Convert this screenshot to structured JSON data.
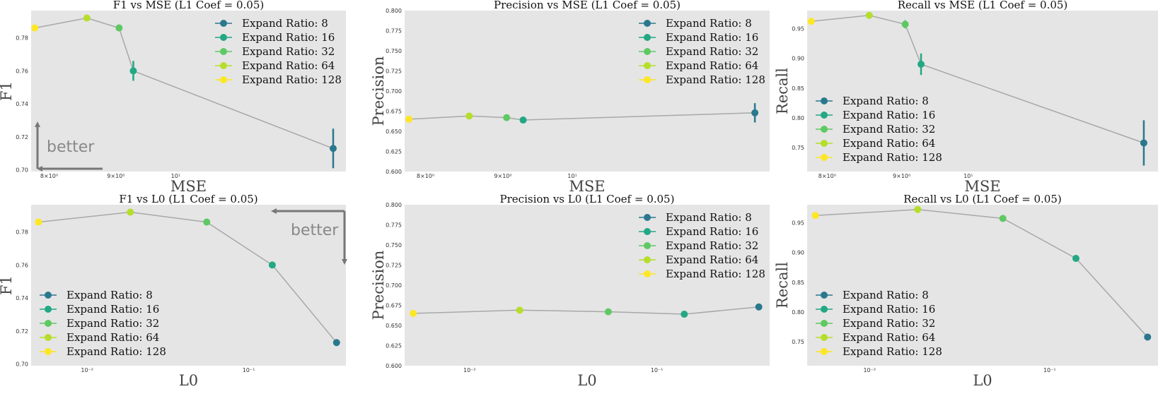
{
  "colors": {
    "axes_bg": "#e5e5e5",
    "connector": "#a8a8a8",
    "arrow": "#777777",
    "ratio_8": "#2a788e",
    "ratio_16": "#22a884",
    "ratio_32": "#5ec962",
    "ratio_64": "#b5de2b",
    "ratio_128": "#fde725"
  },
  "legend": {
    "labels": [
      "Expand Ratio: 8",
      "Expand Ratio: 16",
      "Expand Ratio: 32",
      "Expand Ratio: 64",
      "Expand Ratio: 128"
    ]
  },
  "annotations": {
    "better": "better"
  },
  "chart_data": [
    {
      "type": "scatter",
      "title": "F1 vs MSE (L1 Coef = 0.05)",
      "xlabel": "MSE",
      "ylabel": "F1",
      "xscale": "log",
      "xlim": [
        7.75,
        13.5
      ],
      "ylim": [
        0.699,
        0.7965
      ],
      "xticks": [
        8,
        9,
        10
      ],
      "xtick_labels": [
        "8×10⁰",
        "9×10⁰",
        "10¹"
      ],
      "yticks": [
        0.7,
        0.72,
        0.74,
        0.76,
        0.78
      ],
      "ytick_labels": [
        "0.70",
        "0.72",
        "0.74",
        "0.76",
        "0.78"
      ],
      "legend_position": "upper right",
      "better_arrow": "bottom-left",
      "points": [
        {
          "series": "Expand Ratio: 128",
          "x": 7.8,
          "y": 0.786,
          "err": 0
        },
        {
          "series": "Expand Ratio: 64",
          "x": 8.55,
          "y": 0.792,
          "err": 0
        },
        {
          "series": "Expand Ratio: 32",
          "x": 9.05,
          "y": 0.786,
          "err": 0
        },
        {
          "series": "Expand Ratio: 16",
          "x": 9.28,
          "y": 0.76,
          "err": 0.006
        },
        {
          "series": "Expand Ratio: 8",
          "x": 13.2,
          "y": 0.713,
          "err": 0.012
        }
      ]
    },
    {
      "type": "scatter",
      "title": "Precision vs MSE (L1 Coef = 0.05)",
      "xlabel": "MSE",
      "ylabel": "Precision",
      "xscale": "log",
      "xlim": [
        7.75,
        13.5
      ],
      "ylim": [
        0.6,
        0.8
      ],
      "xticks": [
        8,
        9,
        10
      ],
      "xtick_labels": [
        "8×10⁰",
        "9×10⁰",
        "10¹"
      ],
      "yticks": [
        0.6,
        0.625,
        0.65,
        0.675,
        0.7,
        0.725,
        0.75,
        0.775,
        0.8
      ],
      "ytick_labels": [
        "0.600",
        "0.625",
        "0.650",
        "0.675",
        "0.700",
        "0.725",
        "0.750",
        "0.775",
        "0.800"
      ],
      "legend_position": "upper right",
      "points": [
        {
          "series": "Expand Ratio: 128",
          "x": 7.8,
          "y": 0.665,
          "err": 0
        },
        {
          "series": "Expand Ratio: 64",
          "x": 8.55,
          "y": 0.669,
          "err": 0
        },
        {
          "series": "Expand Ratio: 32",
          "x": 9.05,
          "y": 0.667,
          "err": 0
        },
        {
          "series": "Expand Ratio: 16",
          "x": 9.28,
          "y": 0.664,
          "err": 0
        },
        {
          "series": "Expand Ratio: 8",
          "x": 13.2,
          "y": 0.673,
          "err": 0.012
        }
      ]
    },
    {
      "type": "scatter",
      "title": "Recall vs MSE (L1 Coef = 0.05)",
      "xlabel": "MSE",
      "ylabel": "Recall",
      "xscale": "log",
      "xlim": [
        7.75,
        13.5
      ],
      "ylim": [
        0.71,
        0.98
      ],
      "xticks": [
        8,
        9,
        10
      ],
      "xtick_labels": [
        "8×10⁰",
        "9×10⁰",
        "10¹"
      ],
      "yticks": [
        0.75,
        0.8,
        0.85,
        0.9,
        0.95
      ],
      "ytick_labels": [
        "0.75",
        "0.80",
        "0.85",
        "0.90",
        "0.95"
      ],
      "legend_position": "lower left",
      "points": [
        {
          "series": "Expand Ratio: 128",
          "x": 7.8,
          "y": 0.962,
          "err": 0
        },
        {
          "series": "Expand Ratio: 64",
          "x": 8.55,
          "y": 0.972,
          "err": 0
        },
        {
          "series": "Expand Ratio: 32",
          "x": 9.05,
          "y": 0.957,
          "err": 0.007
        },
        {
          "series": "Expand Ratio: 16",
          "x": 9.28,
          "y": 0.89,
          "err": 0.018
        },
        {
          "series": "Expand Ratio: 8",
          "x": 13.2,
          "y": 0.758,
          "err": 0.038
        }
      ]
    },
    {
      "type": "scatter",
      "title": "F1 vs L0 (L1 Coef = 0.05)",
      "xlabel": "L0",
      "ylabel": "F1",
      "xscale": "log",
      "xlim": [
        0.0045,
        0.4
      ],
      "ylim": [
        0.699,
        0.7965
      ],
      "xticks": [
        0.01,
        0.1
      ],
      "xtick_labels": [
        "10⁻²",
        "10⁻¹"
      ],
      "yticks": [
        0.7,
        0.72,
        0.74,
        0.76,
        0.78
      ],
      "ytick_labels": [
        "0.70",
        "0.72",
        "0.74",
        "0.76",
        "0.78"
      ],
      "legend_position": "lower left",
      "better_arrow": "top-right",
      "points": [
        {
          "series": "Expand Ratio: 128",
          "x": 0.005,
          "y": 0.786,
          "err": 0
        },
        {
          "series": "Expand Ratio: 64",
          "x": 0.0185,
          "y": 0.792,
          "err": 0
        },
        {
          "series": "Expand Ratio: 32",
          "x": 0.055,
          "y": 0.786,
          "err": 0
        },
        {
          "series": "Expand Ratio: 16",
          "x": 0.14,
          "y": 0.76,
          "err": 0
        },
        {
          "series": "Expand Ratio: 8",
          "x": 0.35,
          "y": 0.713,
          "err": 0
        }
      ]
    },
    {
      "type": "scatter",
      "title": "Precision vs L0 (L1 Coef = 0.05)",
      "xlabel": "L0",
      "ylabel": "Precision",
      "xscale": "log",
      "xlim": [
        0.0045,
        0.4
      ],
      "ylim": [
        0.6,
        0.8
      ],
      "xticks": [
        0.01,
        0.1
      ],
      "xtick_labels": [
        "10⁻²",
        "10⁻¹"
      ],
      "yticks": [
        0.6,
        0.625,
        0.65,
        0.675,
        0.7,
        0.725,
        0.75,
        0.775,
        0.8
      ],
      "ytick_labels": [
        "0.600",
        "0.625",
        "0.650",
        "0.675",
        "0.700",
        "0.725",
        "0.750",
        "0.775",
        "0.800"
      ],
      "legend_position": "upper right",
      "points": [
        {
          "series": "Expand Ratio: 128",
          "x": 0.005,
          "y": 0.665,
          "err": 0
        },
        {
          "series": "Expand Ratio: 64",
          "x": 0.0185,
          "y": 0.669,
          "err": 0
        },
        {
          "series": "Expand Ratio: 32",
          "x": 0.055,
          "y": 0.667,
          "err": 0
        },
        {
          "series": "Expand Ratio: 16",
          "x": 0.14,
          "y": 0.664,
          "err": 0
        },
        {
          "series": "Expand Ratio: 8",
          "x": 0.35,
          "y": 0.673,
          "err": 0
        }
      ]
    },
    {
      "type": "scatter",
      "title": "Recall vs L0 (L1 Coef = 0.05)",
      "xlabel": "L0",
      "ylabel": "Recall",
      "xscale": "log",
      "xlim": [
        0.0045,
        0.4
      ],
      "ylim": [
        0.71,
        0.98
      ],
      "xticks": [
        0.01,
        0.1
      ],
      "xtick_labels": [
        "10⁻²",
        "10⁻¹"
      ],
      "yticks": [
        0.75,
        0.8,
        0.85,
        0.9,
        0.95
      ],
      "ytick_labels": [
        "0.75",
        "0.80",
        "0.85",
        "0.90",
        "0.95"
      ],
      "legend_position": "lower left",
      "points": [
        {
          "series": "Expand Ratio: 128",
          "x": 0.005,
          "y": 0.962,
          "err": 0
        },
        {
          "series": "Expand Ratio: 64",
          "x": 0.0185,
          "y": 0.972,
          "err": 0
        },
        {
          "series": "Expand Ratio: 32",
          "x": 0.055,
          "y": 0.957,
          "err": 0
        },
        {
          "series": "Expand Ratio: 16",
          "x": 0.14,
          "y": 0.89,
          "err": 0
        },
        {
          "series": "Expand Ratio: 8",
          "x": 0.35,
          "y": 0.758,
          "err": 0
        }
      ]
    }
  ]
}
